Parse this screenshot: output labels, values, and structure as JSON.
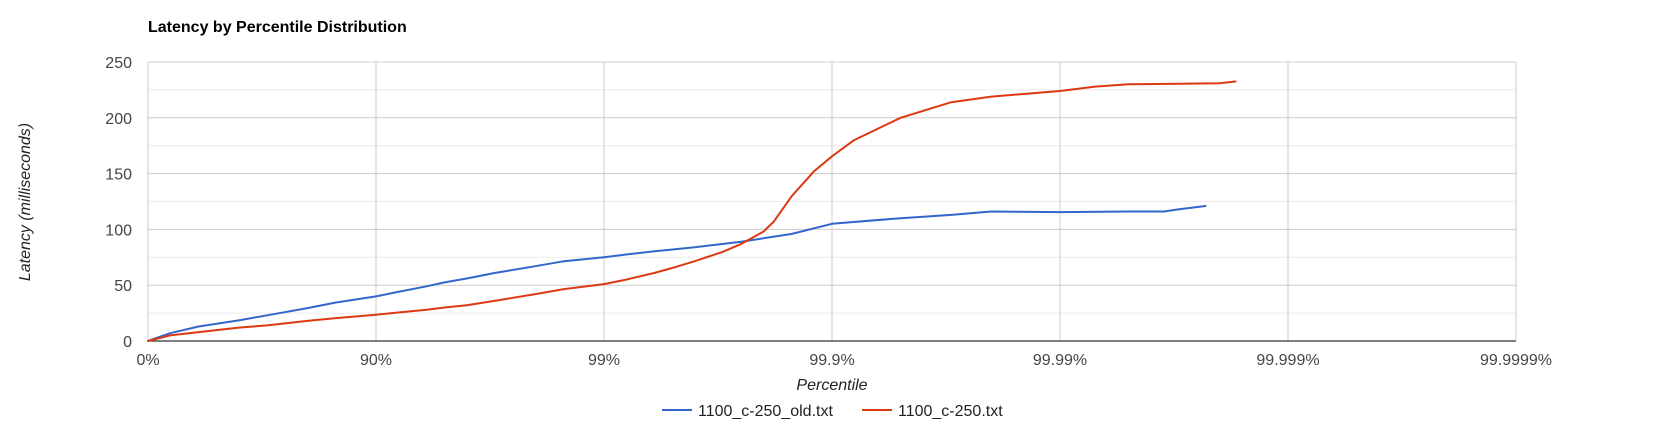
{
  "chart_data": {
    "type": "line",
    "title": "Latency by Percentile Distribution",
    "xlabel": "Percentile",
    "ylabel": "Latency (milliseconds)",
    "x_scale": "log-nines",
    "x_ticks": [
      "0%",
      "90%",
      "99%",
      "99.9%",
      "99.99%",
      "99.999%",
      "99.9999%"
    ],
    "y_ticks": [
      "0",
      "50",
      "100",
      "150",
      "200",
      "250"
    ],
    "ylim": [
      0,
      250
    ],
    "grid": true,
    "legend_position": "bottom",
    "series": [
      {
        "name": "1100_c-250_old.txt",
        "color": "#3366cc",
        "points": [
          [
            0,
            0
          ],
          [
            20,
            7
          ],
          [
            40,
            13
          ],
          [
            60,
            18.5
          ],
          [
            70,
            23
          ],
          [
            80,
            29.5
          ],
          [
            85,
            34.5
          ],
          [
            90,
            40
          ],
          [
            92,
            44
          ],
          [
            94,
            49
          ],
          [
            95,
            52.5
          ],
          [
            96,
            56
          ],
          [
            97,
            61
          ],
          [
            98,
            67
          ],
          [
            98.5,
            71.5
          ],
          [
            99,
            75
          ],
          [
            99.2,
            77.5
          ],
          [
            99.4,
            80.5
          ],
          [
            99.5,
            82
          ],
          [
            99.6,
            84
          ],
          [
            99.7,
            87
          ],
          [
            99.75,
            89
          ],
          [
            99.8,
            92
          ],
          [
            99.85,
            96
          ],
          [
            99.9,
            105
          ],
          [
            99.95,
            110
          ],
          [
            99.97,
            113
          ],
          [
            99.98,
            116
          ],
          [
            99.99,
            115.5
          ],
          [
            99.995,
            116
          ],
          [
            99.9965,
            116
          ],
          [
            99.997,
            118
          ],
          [
            99.9977,
            121
          ]
        ]
      },
      {
        "name": "1100_c-250.txt",
        "color": "#dc3912",
        "points": [
          [
            0,
            0
          ],
          [
            20,
            5
          ],
          [
            40,
            8
          ],
          [
            60,
            12
          ],
          [
            70,
            14
          ],
          [
            80,
            18
          ],
          [
            85,
            20.5
          ],
          [
            90,
            23.5
          ],
          [
            92,
            25.5
          ],
          [
            94,
            28
          ],
          [
            95,
            30
          ],
          [
            96,
            32
          ],
          [
            97,
            36
          ],
          [
            98,
            42
          ],
          [
            98.5,
            46.5
          ],
          [
            99,
            51
          ],
          [
            99.2,
            55
          ],
          [
            99.4,
            61
          ],
          [
            99.5,
            65.5
          ],
          [
            99.6,
            71.5
          ],
          [
            99.7,
            80
          ],
          [
            99.75,
            87
          ],
          [
            99.8,
            98
          ],
          [
            99.82,
            107
          ],
          [
            99.85,
            130
          ],
          [
            99.88,
            152
          ],
          [
            99.9,
            165.5
          ],
          [
            99.92,
            180
          ],
          [
            99.95,
            200
          ],
          [
            99.97,
            214
          ],
          [
            99.98,
            219
          ],
          [
            99.99,
            224
          ],
          [
            99.993,
            228
          ],
          [
            99.995,
            230
          ],
          [
            99.997,
            230.5
          ],
          [
            99.998,
            231
          ],
          [
            99.9983,
            232.5
          ]
        ]
      }
    ]
  }
}
